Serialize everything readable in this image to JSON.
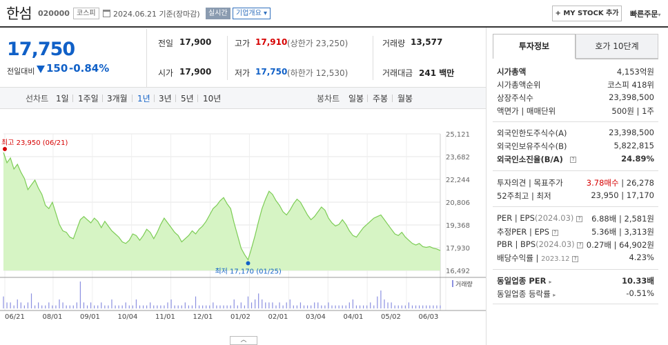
{
  "header": {
    "name": "한섬",
    "code": "020000",
    "market": "코스피",
    "date": "2024.06.21",
    "date_suffix": "기준(장마감)",
    "realtime": "실시간",
    "overview": "기업개요",
    "mystock": "+ MY STOCK 추가",
    "quick_order": "빠른주문"
  },
  "price": {
    "current": "17,750",
    "change_label": "전일대비",
    "change": "150",
    "rate": "-0.84%"
  },
  "quote": {
    "prev_label": "전일",
    "prev": "17,900",
    "high_label": "고가",
    "high": "17,910",
    "upper_limit": "(상한가 23,250)",
    "volume_label": "거래량",
    "volume": "13,577",
    "open_label": "시가",
    "open": "17,900",
    "low_label": "저가",
    "low": "17,750",
    "lower_limit": "(하한가 12,530)",
    "amount_label": "거래대금",
    "amount": "241",
    "amount_unit": "백만"
  },
  "tabs": {
    "line_label": "선차트",
    "periods": [
      "1일",
      "1주일",
      "3개월",
      "1년",
      "3년",
      "5년",
      "10년"
    ],
    "candle_label": "봉차트",
    "candles": [
      "일봉",
      "주봉",
      "월봉"
    ]
  },
  "chart_data": {
    "type": "area",
    "yticks": [
      "25,121",
      "23,682",
      "22,244",
      "20,806",
      "19,368",
      "17,930",
      "16,492"
    ],
    "ylim": [
      16492,
      25121
    ],
    "xticks": [
      "06/21",
      "08/01",
      "09/01",
      "10/04",
      "11/01",
      "12/01",
      "01/02",
      "02/01",
      "03/04",
      "04/01",
      "05/02",
      "06/03"
    ],
    "high_label": "최고 23,950 (06/21)",
    "low_label": "최저 17,170 (01/25)",
    "volume_label": "거래량",
    "series": [
      {
        "values": [
          23950,
          23300,
          23600,
          22900,
          23200,
          22700,
          22300,
          21600,
          21900,
          22200,
          21700,
          21300,
          20600,
          20400,
          20800,
          20100,
          19400,
          19000,
          18900,
          18600,
          18500,
          19100,
          19700,
          19900,
          19700,
          19500,
          19800,
          19600,
          19200,
          19600,
          19300,
          19000,
          18800,
          18600,
          18300,
          18200,
          18400,
          18800,
          18700,
          18400,
          18700,
          19100,
          18900,
          18500,
          18900,
          19400,
          19800,
          19500,
          19200,
          18900,
          18700,
          18300,
          18500,
          18700,
          19000,
          18800,
          19100,
          19300,
          19600,
          20000,
          20400,
          20600,
          20900,
          21100,
          20700,
          20400,
          19500,
          18700,
          17900,
          17500,
          17170,
          17900,
          18700,
          19600,
          20400,
          21000,
          21500,
          21300,
          20900,
          20600,
          20200,
          20000,
          20300,
          20700,
          21000,
          20800,
          20400,
          20000,
          19700,
          19900,
          20200,
          20500,
          20300,
          19800,
          19500,
          19300,
          19400,
          19700,
          19400,
          19000,
          18700,
          18600,
          18900,
          19200,
          19400,
          19600,
          19800,
          19900,
          20000,
          19700,
          19400,
          19100,
          18800,
          18700,
          18900,
          18600,
          18400,
          18200,
          18100,
          18200,
          18000,
          17950,
          18000,
          17900,
          17850,
          17750
        ]
      },
      {
        "name": "거래량",
        "values": [
          4,
          2,
          2,
          1,
          3,
          2,
          1,
          2,
          5,
          1,
          2,
          1,
          1,
          2,
          1,
          1,
          3,
          2,
          1,
          1,
          1,
          2,
          9,
          2,
          1,
          2,
          1,
          1,
          2,
          1,
          1,
          3,
          1,
          1,
          1,
          2,
          1,
          1,
          3,
          1,
          1,
          1,
          2,
          1,
          1,
          1,
          1,
          2,
          3,
          1,
          1,
          1,
          2,
          1,
          1,
          4,
          1,
          1,
          1,
          1,
          2,
          1,
          1,
          1,
          1,
          1,
          3,
          1,
          2,
          1,
          4,
          2,
          3,
          5,
          3,
          2,
          2,
          2,
          1,
          2,
          1,
          2,
          3,
          1,
          1,
          2,
          1,
          1,
          1,
          2,
          2,
          1,
          1,
          2,
          1,
          1,
          1,
          1,
          1,
          2,
          3,
          1,
          1,
          1,
          1,
          2,
          1,
          4,
          6,
          3,
          2,
          2,
          1,
          1,
          1,
          1,
          2,
          1,
          1,
          1,
          1,
          1,
          1,
          1,
          1,
          1
        ]
      }
    ]
  },
  "info": {
    "tab_invest": "투자정보",
    "tab_quote": "호가 10단계",
    "rows_a": [
      {
        "l": "시가총액",
        "r": "4,153억원"
      },
      {
        "l": "시가총액순위",
        "r": "코스피 418위"
      },
      {
        "l": "상장주식수",
        "r": "23,398,500"
      },
      {
        "l": "액면가 | 매매단위",
        "r": "500원 | 1주"
      }
    ],
    "rows_b": [
      {
        "l": "외국인한도주식수(A)",
        "r": "23,398,500"
      },
      {
        "l": "외국인보유주식수(B)",
        "r": "5,822,815"
      },
      {
        "l": "외국인소진율(B/A)",
        "r": "24.89%"
      }
    ],
    "opinion": {
      "l": "투자의견 | 목표주가",
      "r1": "3.78매수",
      "r2": "| 26,278"
    },
    "w52": {
      "l": "52주최고 | 최저",
      "r": "23,950 | 17,170"
    },
    "per": {
      "l1": "PER | EPS",
      "l2": "(2024.03)",
      "r": "6.88배 | 2,581원"
    },
    "eper": {
      "l": "추정PER | EPS",
      "r": "5.36배 | 3,313원"
    },
    "pbr": {
      "l1": "PBR | BPS",
      "l2": "(2024.03)",
      "r": "0.27배 | 64,902원"
    },
    "div": {
      "l1": "배당수익률 |",
      "l2": "2023.12",
      "r": "4.23%"
    },
    "sector_per": {
      "l": "동일업종 PER",
      "r": "10.33배"
    },
    "sector_rate": {
      "l": "동일업종 등락률",
      "r": "-0.51%"
    }
  },
  "colors": {
    "down": "#1060c7",
    "up": "#d60000",
    "area": "#c8efb4",
    "line": "#7ccc55"
  }
}
